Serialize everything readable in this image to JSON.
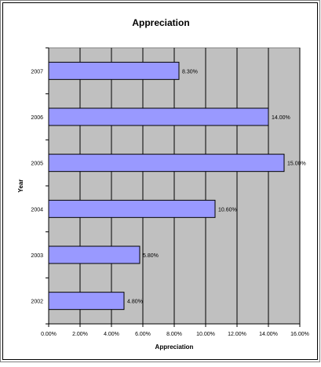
{
  "chart_data": {
    "type": "bar",
    "orientation": "horizontal",
    "title": "Appreciation",
    "xlabel": "Appreciation",
    "ylabel": "Year",
    "categories": [
      "2002",
      "2003",
      "2004",
      "2005",
      "2006",
      "2007"
    ],
    "values": [
      0.048,
      0.058,
      0.106,
      0.15,
      0.14,
      0.083
    ],
    "data_labels": [
      "4.80%",
      "5.80%",
      "10.60%",
      "15.00%",
      "14.00%",
      "8.30%"
    ],
    "xlim": [
      0,
      0.16
    ],
    "x_ticks": [
      0,
      0.02,
      0.04,
      0.06,
      0.08,
      0.1,
      0.12,
      0.14,
      0.16
    ],
    "x_tick_labels": [
      "0.00%",
      "2.00%",
      "4.00%",
      "6.00%",
      "8.00%",
      "10.00%",
      "12.00%",
      "14.00%",
      "16.00%"
    ],
    "grid": "vertical",
    "legend": "none",
    "colors": {
      "bar": "#9999ff",
      "plot_background": "#c0c0c0",
      "grid": "#000000"
    }
  }
}
